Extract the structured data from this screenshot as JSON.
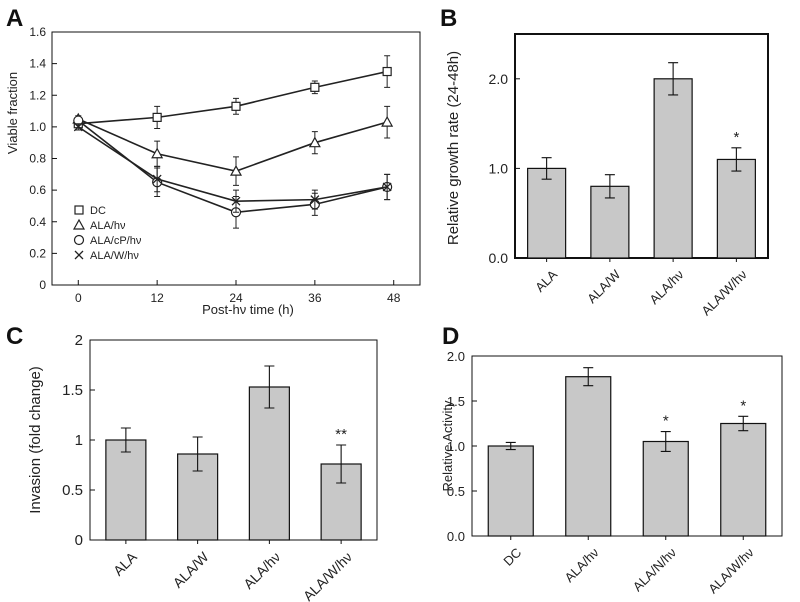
{
  "chart_data": [
    {
      "panel": "A",
      "type": "line",
      "xlabel": "Post-hν time (h)",
      "ylabel": "Viable fraction",
      "x": [
        0,
        12,
        24,
        36,
        48
      ],
      "x_tick_labels": [
        "0",
        "12",
        "24",
        "36",
        "48"
      ],
      "xlim": [
        -4,
        52
      ],
      "ylim": [
        0,
        1.6
      ],
      "y_tick_labels": [
        "0",
        "0.2",
        "0.4",
        "0.6",
        "0.8",
        "1.0",
        "1.2",
        "1.4",
        "1.6"
      ],
      "series": [
        {
          "name": "DC",
          "marker": "square",
          "x": [
            0,
            12,
            24,
            36,
            47
          ],
          "values": [
            1.02,
            1.06,
            1.13,
            1.25,
            1.35
          ],
          "errors": [
            0.02,
            0.07,
            0.05,
            0.04,
            0.1
          ]
        },
        {
          "name": "ALA/hν",
          "marker": "triangle",
          "x": [
            0,
            12,
            24,
            36,
            47
          ],
          "values": [
            1.05,
            0.83,
            0.72,
            0.9,
            1.03
          ],
          "errors": [
            0.02,
            0.08,
            0.09,
            0.07,
            0.1
          ]
        },
        {
          "name": "ALA/cP/hν",
          "marker": "circle",
          "x": [
            0,
            12,
            24,
            36,
            47
          ],
          "values": [
            1.04,
            0.65,
            0.46,
            0.51,
            0.62
          ],
          "errors": [
            0.02,
            0.09,
            0.1,
            0.07,
            0.08
          ]
        },
        {
          "name": "ALA/W/hν",
          "marker": "x",
          "x": [
            0,
            12,
            24,
            36,
            47
          ],
          "values": [
            1.0,
            0.67,
            0.53,
            0.54,
            0.62
          ],
          "errors": [
            0.02,
            0.08,
            0.07,
            0.06,
            0.08
          ]
        }
      ],
      "legend_position": "bottom-left"
    },
    {
      "panel": "B",
      "type": "bar",
      "ylabel": "Relative growth rate (24-48h)",
      "categories": [
        "ALA",
        "ALA/W",
        "ALA/hν",
        "ALA/W/hν"
      ],
      "values": [
        1.0,
        0.8,
        2.0,
        1.1
      ],
      "errors": [
        0.12,
        0.13,
        0.18,
        0.13
      ],
      "annotations": [
        "",
        "",
        "",
        "*"
      ],
      "ylim": [
        0,
        2.5
      ],
      "y_tick_labels": [
        "0.0",
        "1.0",
        "2.0"
      ]
    },
    {
      "panel": "C",
      "type": "bar",
      "ylabel": "Invasion (fold change)",
      "categories": [
        "ALA",
        "ALA/W",
        "ALA/hν",
        "ALA/W/hν"
      ],
      "values": [
        1.0,
        0.86,
        1.53,
        0.76
      ],
      "errors": [
        0.12,
        0.17,
        0.21,
        0.19
      ],
      "annotations": [
        "",
        "",
        "",
        "**"
      ],
      "ylim": [
        0,
        2
      ],
      "y_tick_labels": [
        "0",
        "0.5",
        "1",
        "1.5",
        "2"
      ]
    },
    {
      "panel": "D",
      "type": "bar",
      "ylabel": "Relative Activity",
      "categories": [
        "DC",
        "ALA/hν",
        "ALA/N/hν",
        "ALA/W/hν"
      ],
      "values": [
        1.0,
        1.77,
        1.05,
        1.25
      ],
      "errors": [
        0.04,
        0.1,
        0.11,
        0.08
      ],
      "annotations": [
        "",
        "",
        "*",
        "*"
      ],
      "ylim": [
        0,
        2.0
      ],
      "y_tick_labels": [
        "0.0",
        "0.5",
        "1.0",
        "1.5",
        "2.0"
      ]
    }
  ],
  "colors": {
    "bar_fill": "#c8c8c8",
    "axis": "#111111",
    "line": "#222222"
  }
}
